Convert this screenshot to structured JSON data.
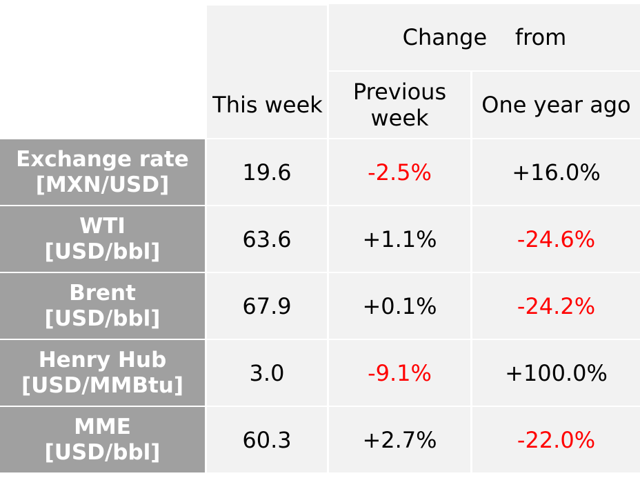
{
  "header": {
    "change_from": "Change    from",
    "this_week": "This week",
    "previous_week_line1": "Previous",
    "previous_week_line2": "week",
    "one_year_ago": "One year ago"
  },
  "colors": {
    "negative": "#ff0000",
    "label_background": "#a0a0a0",
    "cell_background": "#f2f2f2"
  },
  "rows": [
    {
      "name_line1": "Exchange rate",
      "name_line2": "[MXN/USD]",
      "this_week": "19.6",
      "previous_week": "-2.5%",
      "previous_week_negative": true,
      "one_year_ago": "+16.0%",
      "one_year_ago_negative": false
    },
    {
      "name_line1": "WTI",
      "name_line2": "[USD/bbl]",
      "this_week": "63.6",
      "previous_week": "+1.1%",
      "previous_week_negative": false,
      "one_year_ago": "-24.6%",
      "one_year_ago_negative": true
    },
    {
      "name_line1": "Brent",
      "name_line2": "[USD/bbl]",
      "this_week": "67.9",
      "previous_week": "+0.1%",
      "previous_week_negative": false,
      "one_year_ago": "-24.2%",
      "one_year_ago_negative": true
    },
    {
      "name_line1": "Henry Hub",
      "name_line2": "[USD/MMBtu]",
      "this_week": "3.0",
      "previous_week": "-9.1%",
      "previous_week_negative": true,
      "one_year_ago": "+100.0%",
      "one_year_ago_negative": false
    },
    {
      "name_line1": "MME",
      "name_line2": "[USD/bbl]",
      "this_week": "60.3",
      "previous_week": "+2.7%",
      "previous_week_negative": false,
      "one_year_ago": "-22.0%",
      "one_year_ago_negative": true
    }
  ]
}
